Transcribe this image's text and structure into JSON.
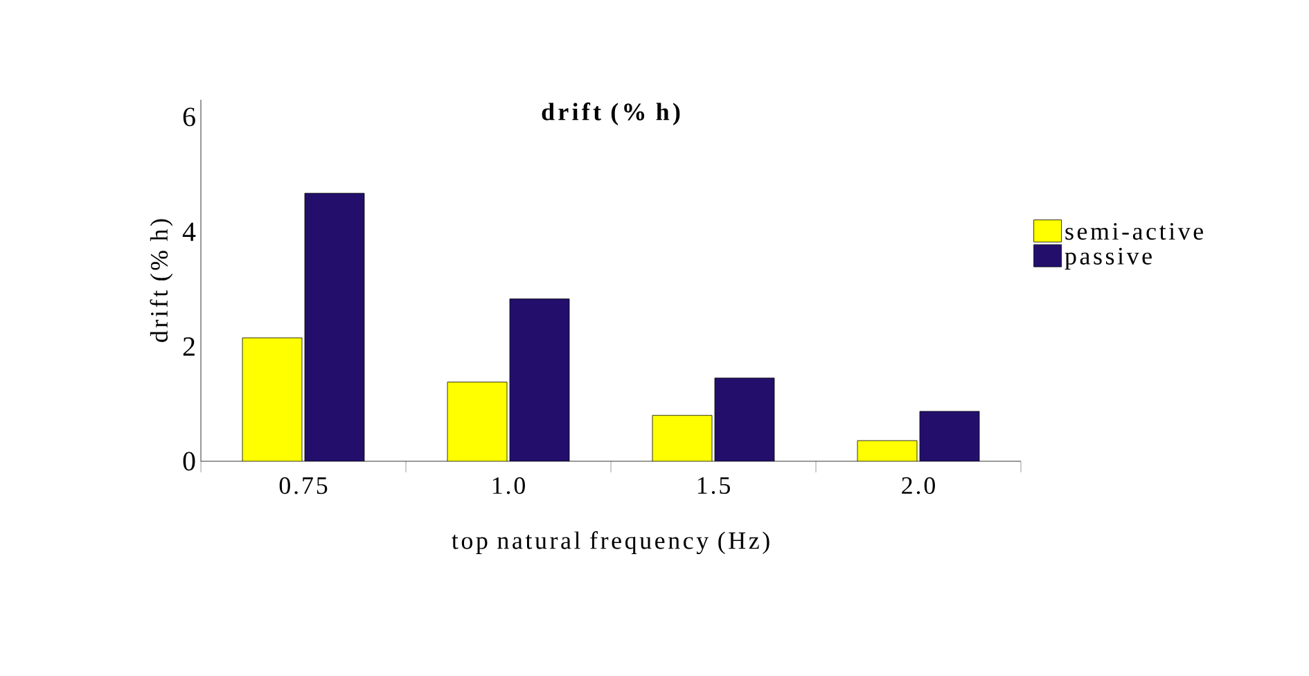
{
  "chart_data": {
    "type": "bar",
    "title": "drift (% h)",
    "xlabel": "top natural frequency (Hz)",
    "ylabel": "drift (% h)",
    "categories": [
      "0.75",
      "1.0",
      "1.5",
      "2.0"
    ],
    "series": [
      {
        "name": "semi-active",
        "color": "#ffff00",
        "values": [
          2.15,
          1.38,
          0.8,
          0.36
        ]
      },
      {
        "name": "passive",
        "color": "#230f6b",
        "values": [
          4.67,
          2.83,
          1.45,
          0.87
        ]
      }
    ],
    "ylim": [
      0,
      6.3
    ],
    "yticks": [
      0,
      2,
      4,
      6
    ],
    "grid": false,
    "legend": "right"
  }
}
